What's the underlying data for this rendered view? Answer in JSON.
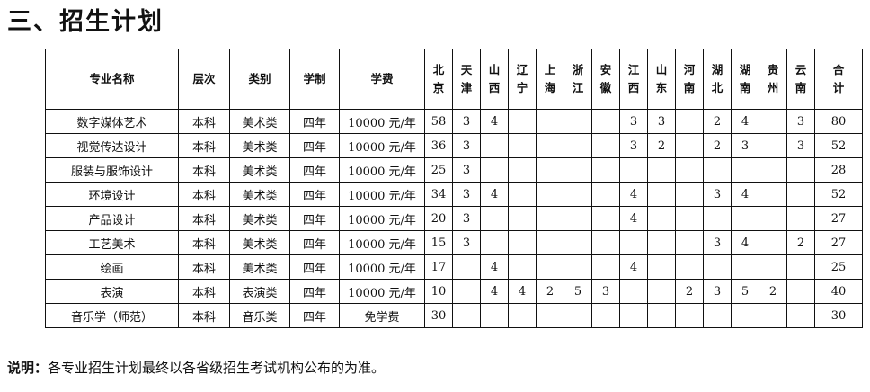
{
  "title": "三、招生计划",
  "headers": [
    "专业名称",
    "层次",
    "类别",
    "学制",
    "学费"
  ],
  "provinces": [
    "北\n京",
    "天\n津",
    "山\n西",
    "辽\n宁",
    "上\n海",
    "浙\n江",
    "安\n徽",
    "江\n西",
    "山\n东",
    "河\n南",
    "湖\n北",
    "湖\n南",
    "贵\n州",
    "云\n南",
    "合\n计"
  ],
  "rows": [
    {
      "name": "数字媒体艺术",
      "level": "本科",
      "type": "美术类",
      "years": "四年",
      "fee": "10000 元/年",
      "counts": [
        "58",
        "3",
        "4",
        "",
        "",
        "",
        "",
        "3",
        "3",
        "",
        "2",
        "4",
        "",
        "3",
        "80"
      ]
    },
    {
      "name": "视觉传达设计",
      "level": "本科",
      "type": "美术类",
      "years": "四年",
      "fee": "10000 元/年",
      "counts": [
        "36",
        "3",
        "",
        "",
        "",
        "",
        "",
        "3",
        "2",
        "",
        "2",
        "3",
        "",
        "3",
        "52"
      ]
    },
    {
      "name": "服装与服饰设计",
      "level": "本科",
      "type": "美术类",
      "years": "四年",
      "fee": "10000 元/年",
      "counts": [
        "25",
        "3",
        "",
        "",
        "",
        "",
        "",
        "",
        "",
        "",
        "",
        "",
        "",
        "",
        "28"
      ]
    },
    {
      "name": "环境设计",
      "level": "本科",
      "type": "美术类",
      "years": "四年",
      "fee": "10000 元/年",
      "counts": [
        "34",
        "3",
        "4",
        "",
        "",
        "",
        "",
        "4",
        "",
        "",
        "3",
        "4",
        "",
        "",
        "52"
      ]
    },
    {
      "name": "产品设计",
      "level": "本科",
      "type": "美术类",
      "years": "四年",
      "fee": "10000 元/年",
      "counts": [
        "20",
        "3",
        "",
        "",
        "",
        "",
        "",
        "4",
        "",
        "",
        "",
        "",
        "",
        "",
        "27"
      ]
    },
    {
      "name": "工艺美术",
      "level": "本科",
      "type": "美术类",
      "years": "四年",
      "fee": "10000 元/年",
      "counts": [
        "15",
        "3",
        "",
        "",
        "",
        "",
        "",
        "",
        "",
        "",
        "3",
        "4",
        "",
        "2",
        "27"
      ]
    },
    {
      "name": "绘画",
      "level": "本科",
      "type": "美术类",
      "years": "四年",
      "fee": "10000 元/年",
      "counts": [
        "17",
        "",
        "4",
        "",
        "",
        "",
        "",
        "4",
        "",
        "",
        "",
        "",
        "",
        "",
        "25"
      ]
    },
    {
      "name": "表演",
      "level": "本科",
      "type": "表演类",
      "years": "四年",
      "fee": "10000 元/年",
      "counts": [
        "10",
        "",
        "4",
        "4",
        "2",
        "5",
        "3",
        "",
        "",
        "2",
        "3",
        "5",
        "2",
        "",
        "40"
      ]
    },
    {
      "name": "音乐学（师范）",
      "level": "本科",
      "type": "音乐类",
      "years": "四年",
      "fee": "免学费",
      "counts": [
        "30",
        "",
        "",
        "",
        "",
        "",
        "",
        "",
        "",
        "",
        "",
        "",
        "",
        "",
        "30"
      ]
    }
  ],
  "note": {
    "label": "说明：",
    "text": "各专业招生计划最终以各省级招生考试机构公布的为准。"
  }
}
